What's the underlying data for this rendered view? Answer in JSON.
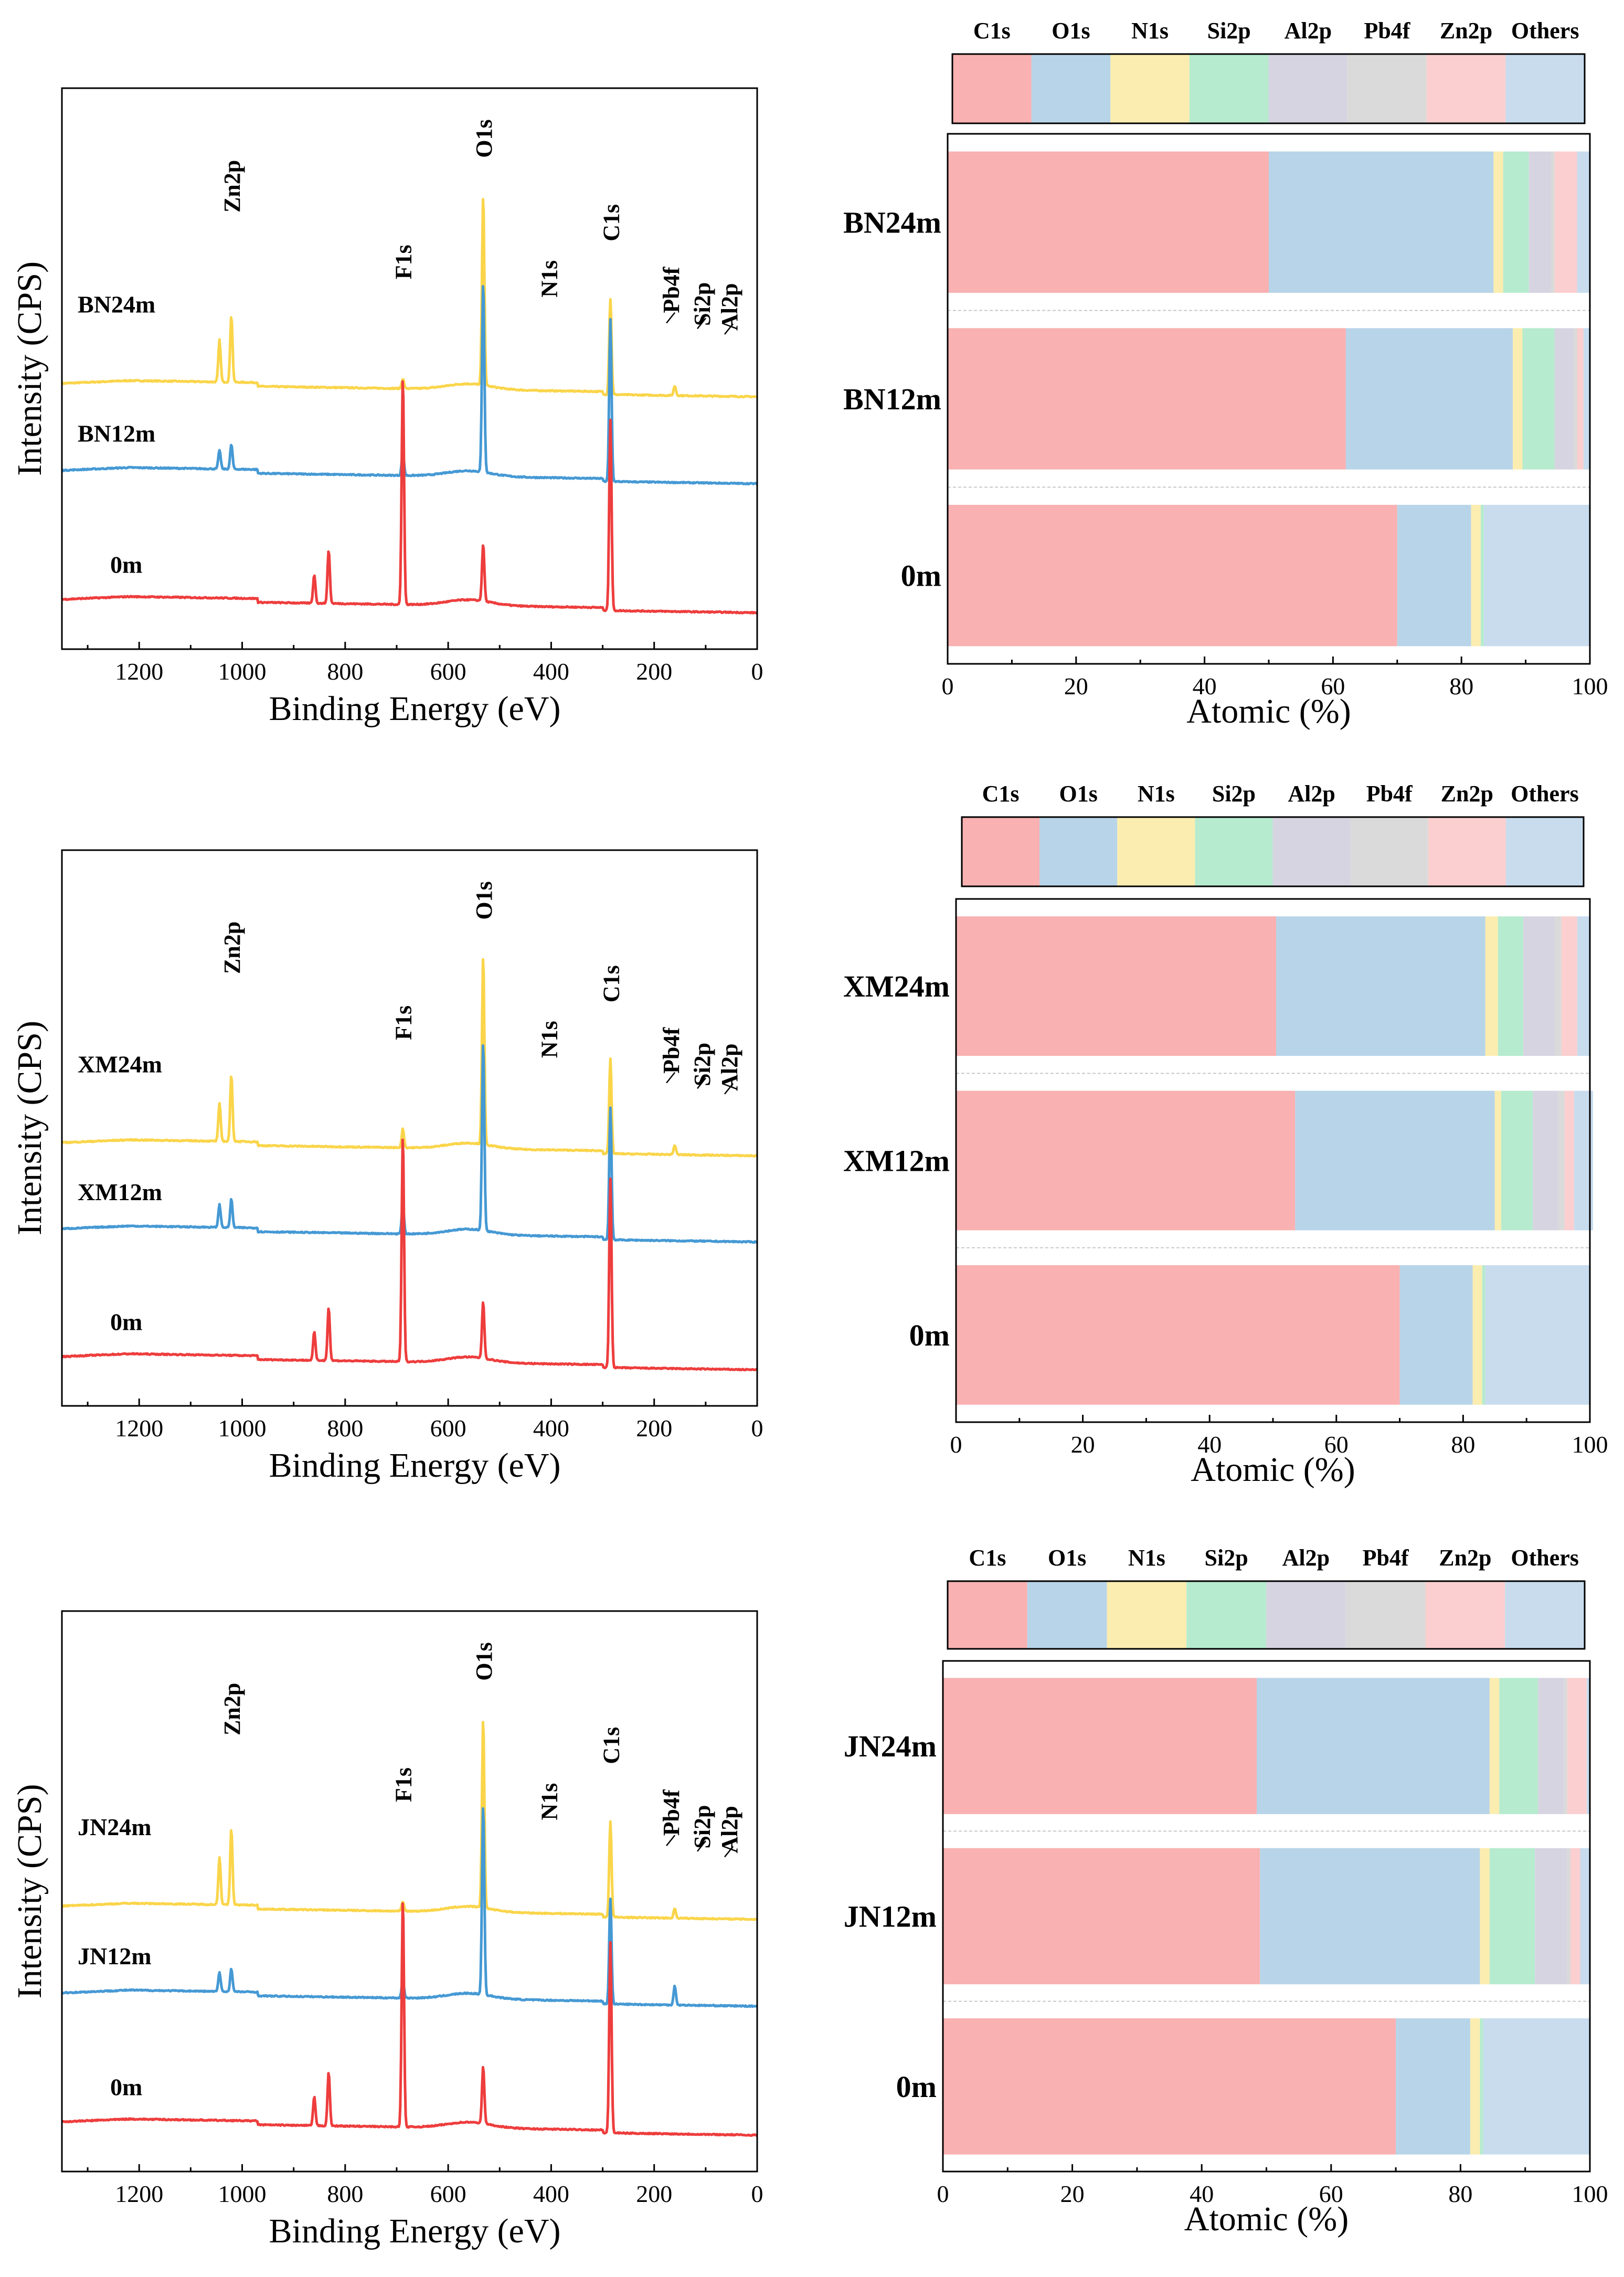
{
  "legend": {
    "labels": [
      "C1s",
      "O1s",
      "N1s",
      "Si2p",
      "Al2p",
      "Pb4f",
      "Zn2p",
      "Others"
    ],
    "colors": [
      "#f9b1b1",
      "#b8d4e8",
      "#fbedb0",
      "#b6ebcf",
      "#d6d4e1",
      "#dadada",
      "#fbcfcf",
      "#c8dcee"
    ]
  },
  "spectra_colors": [
    "#fad54a",
    "#4599d4",
    "#ee3d3d"
  ],
  "chart_data": [
    {
      "type": "line",
      "title": "",
      "xlabel": "Binding Energy (eV)",
      "ylabel": "Intensity (CPS)",
      "xlim": [
        1350,
        0
      ],
      "xticks": [
        1200,
        1000,
        800,
        600,
        400,
        200,
        0
      ],
      "x_inverted": true,
      "series": [
        {
          "name": "BN24m",
          "offset": 2,
          "peaks": [
            {
              "x": 1021,
              "h": 0.35
            },
            {
              "x": 1044,
              "h": 0.22
            },
            {
              "x": 532,
              "h": 1.0
            },
            {
              "x": 285,
              "h": 0.5
            },
            {
              "x": 688,
              "h": 0.05
            },
            {
              "x": 160,
              "h": 0.05
            }
          ]
        },
        {
          "name": "BN12m",
          "offset": 1,
          "peaks": [
            {
              "x": 1021,
              "h": 0.13
            },
            {
              "x": 1044,
              "h": 0.1
            },
            {
              "x": 532,
              "h": 1.0
            },
            {
              "x": 285,
              "h": 0.85
            },
            {
              "x": 688,
              "h": 0.12
            }
          ]
        },
        {
          "name": "0m",
          "offset": 0,
          "peaks": [
            {
              "x": 688,
              "h": 1.2
            },
            {
              "x": 832,
              "h": 0.28
            },
            {
              "x": 860,
              "h": 0.15
            },
            {
              "x": 532,
              "h": 0.3
            },
            {
              "x": 285,
              "h": 1.0
            }
          ]
        }
      ],
      "annotations": [
        "Zn2p",
        "F1s",
        "O1s",
        "N1s",
        "C1s",
        "Pb4f",
        "Si2p",
        "Al2p"
      ]
    },
    {
      "type": "bar",
      "orientation": "horizontal",
      "stacked": true,
      "xlabel": "Atomic (%)",
      "xlim": [
        0,
        100
      ],
      "xticks": [
        0,
        20,
        40,
        60,
        80,
        100
      ],
      "categories": [
        "BN24m",
        "BN12m",
        "0m"
      ],
      "series": [
        {
          "name": "C1s",
          "values": [
            50,
            62,
            70
          ]
        },
        {
          "name": "O1s",
          "values": [
            35,
            26,
            11.5
          ]
        },
        {
          "name": "N1s",
          "values": [
            1.5,
            1.5,
            1.5
          ]
        },
        {
          "name": "Si2p",
          "values": [
            4,
            5,
            0.5
          ]
        },
        {
          "name": "Al2p",
          "values": [
            3.5,
            3,
            0
          ]
        },
        {
          "name": "Pb4f",
          "values": [
            0.5,
            0.5,
            0
          ]
        },
        {
          "name": "Zn2p",
          "values": [
            3.5,
            1,
            0
          ]
        },
        {
          "name": "Others",
          "values": [
            2,
            1,
            16.5
          ]
        }
      ]
    },
    {
      "type": "line",
      "title": "",
      "xlabel": "Binding Energy (eV)",
      "ylabel": "Intensity (CPS)",
      "xlim": [
        1350,
        0
      ],
      "xticks": [
        1200,
        1000,
        800,
        600,
        400,
        200,
        0
      ],
      "x_inverted": true,
      "series": [
        {
          "name": "XM24m",
          "offset": 2,
          "peaks": [
            {
              "x": 1021,
              "h": 0.35
            },
            {
              "x": 1044,
              "h": 0.2
            },
            {
              "x": 532,
              "h": 1.0
            },
            {
              "x": 285,
              "h": 0.5
            },
            {
              "x": 688,
              "h": 0.1
            },
            {
              "x": 160,
              "h": 0.05
            }
          ]
        },
        {
          "name": "XM12m",
          "offset": 1,
          "peaks": [
            {
              "x": 1021,
              "h": 0.15
            },
            {
              "x": 1044,
              "h": 0.12
            },
            {
              "x": 532,
              "h": 1.0
            },
            {
              "x": 285,
              "h": 0.7
            },
            {
              "x": 688,
              "h": 0.15
            }
          ]
        },
        {
          "name": "0m",
          "offset": 0,
          "peaks": [
            {
              "x": 688,
              "h": 1.2
            },
            {
              "x": 832,
              "h": 0.28
            },
            {
              "x": 860,
              "h": 0.15
            },
            {
              "x": 532,
              "h": 0.3
            },
            {
              "x": 285,
              "h": 1.0
            }
          ]
        }
      ],
      "annotations": [
        "Zn2p",
        "F1s",
        "O1s",
        "N1s",
        "C1s",
        "Pb4f",
        "Si2p",
        "Al2p"
      ]
    },
    {
      "type": "bar",
      "orientation": "horizontal",
      "stacked": true,
      "xlabel": "Atomic (%)",
      "xlim": [
        0,
        100
      ],
      "xticks": [
        0,
        20,
        40,
        60,
        80,
        100
      ],
      "categories": [
        "XM24m",
        "XM12m",
        "0m"
      ],
      "series": [
        {
          "name": "C1s",
          "values": [
            50.5,
            53.5,
            70
          ]
        },
        {
          "name": "O1s",
          "values": [
            33,
            31.5,
            11.5
          ]
        },
        {
          "name": "N1s",
          "values": [
            2,
            1,
            1.5
          ]
        },
        {
          "name": "Si2p",
          "values": [
            4,
            5,
            0.5
          ]
        },
        {
          "name": "Al2p",
          "values": [
            5,
            4,
            0
          ]
        },
        {
          "name": "Pb4f",
          "values": [
            1,
            1,
            0
          ]
        },
        {
          "name": "Zn2p",
          "values": [
            2.5,
            1.5,
            0
          ]
        },
        {
          "name": "Others",
          "values": [
            2,
            3,
            16.5
          ]
        }
      ]
    },
    {
      "type": "line",
      "title": "",
      "xlabel": "Binding Energy (eV)",
      "ylabel": "Intensity (CPS)",
      "xlim": [
        1350,
        0
      ],
      "xticks": [
        1200,
        1000,
        800,
        600,
        400,
        200,
        0
      ],
      "x_inverted": true,
      "series": [
        {
          "name": "JN24m",
          "offset": 2,
          "peaks": [
            {
              "x": 1021,
              "h": 0.4
            },
            {
              "x": 1044,
              "h": 0.25
            },
            {
              "x": 532,
              "h": 1.0
            },
            {
              "x": 285,
              "h": 0.5
            },
            {
              "x": 688,
              "h": 0.05
            },
            {
              "x": 160,
              "h": 0.05
            }
          ]
        },
        {
          "name": "JN12m",
          "offset": 1,
          "peaks": [
            {
              "x": 1021,
              "h": 0.12
            },
            {
              "x": 1044,
              "h": 0.1
            },
            {
              "x": 532,
              "h": 1.0
            },
            {
              "x": 285,
              "h": 0.55
            },
            {
              "x": 688,
              "h": 0.1
            },
            {
              "x": 160,
              "h": 0.1
            }
          ]
        },
        {
          "name": "0m",
          "offset": 0,
          "peaks": [
            {
              "x": 688,
              "h": 1.2
            },
            {
              "x": 832,
              "h": 0.28
            },
            {
              "x": 860,
              "h": 0.15
            },
            {
              "x": 532,
              "h": 0.3
            },
            {
              "x": 285,
              "h": 1.0
            }
          ]
        }
      ],
      "annotations": [
        "Zn2p",
        "F1s",
        "O1s",
        "N1s",
        "C1s",
        "Pb4f",
        "Si2p",
        "Al2p"
      ]
    },
    {
      "type": "bar",
      "orientation": "horizontal",
      "stacked": true,
      "xlabel": "Atomic (%)",
      "xlim": [
        0,
        100
      ],
      "xticks": [
        0,
        20,
        40,
        60,
        80,
        100
      ],
      "categories": [
        "JN24m",
        "JN12m",
        "0m"
      ],
      "series": [
        {
          "name": "C1s",
          "values": [
            48.5,
            49,
            70
          ]
        },
        {
          "name": "O1s",
          "values": [
            36,
            34,
            11.5
          ]
        },
        {
          "name": "N1s",
          "values": [
            1.5,
            1.5,
            1.5
          ]
        },
        {
          "name": "Si2p",
          "values": [
            6,
            7,
            0.5
          ]
        },
        {
          "name": "Al2p",
          "values": [
            4,
            5,
            0
          ]
        },
        {
          "name": "Pb4f",
          "values": [
            0.5,
            0.5,
            0
          ]
        },
        {
          "name": "Zn2p",
          "values": [
            3,
            1.5,
            0
          ]
        },
        {
          "name": "Others",
          "values": [
            0.5,
            1.5,
            16.5
          ]
        }
      ]
    }
  ]
}
